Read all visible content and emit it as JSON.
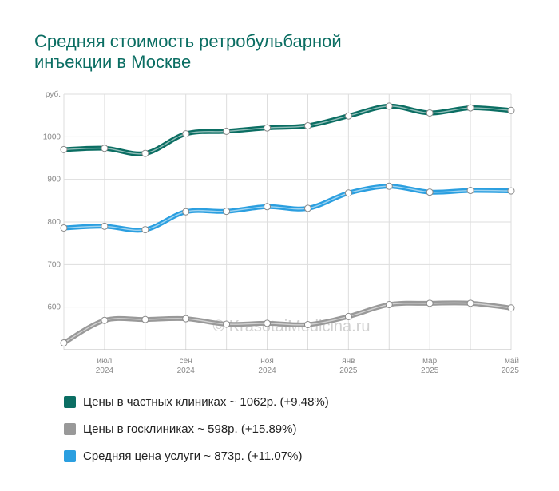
{
  "title_lines": [
    "Средняя стоимость ретробульбарной",
    "инъекции в Москве"
  ],
  "watermark": "© KrasotaiMedicina.ru",
  "colors": {
    "private": "#0b6e63",
    "public": "#999999",
    "average": "#2b9fe0",
    "grid": "#dddddd"
  },
  "chart_data": {
    "type": "line",
    "title": "Средняя стоимость ретробульбарной инъекции в Москве",
    "ylabel": "руб.",
    "ylim": [
      500,
      1100
    ],
    "yticks": [
      600,
      700,
      800,
      900,
      1000
    ],
    "x": [
      "2024-06",
      "2024-07",
      "2024-08",
      "2024-09",
      "2024-10",
      "2024-11",
      "2024-12",
      "2025-01",
      "2025-02",
      "2025-03",
      "2025-04",
      "2025-05"
    ],
    "xtick_labels": [
      {
        "month": "июл",
        "year": "2024"
      },
      {
        "month": "сен",
        "year": "2024"
      },
      {
        "month": "ноя",
        "year": "2024"
      },
      {
        "month": "янв",
        "year": "2025"
      },
      {
        "month": "мар",
        "year": "2025"
      },
      {
        "month": "май",
        "year": "2025"
      }
    ],
    "grid": true,
    "legend_position": "bottom",
    "series": [
      {
        "name": "Цены в частных клиниках",
        "color_key": "private",
        "values": [
          970,
          973,
          961,
          1007,
          1013,
          1021,
          1026,
          1049,
          1072,
          1056,
          1068,
          1062
        ]
      },
      {
        "name": "Цены в госклиниках",
        "color_key": "public",
        "values": [
          516,
          569,
          571,
          573,
          560,
          562,
          559,
          578,
          606,
          609,
          609,
          598
        ]
      },
      {
        "name": "Средняя цена услуги",
        "color_key": "average",
        "values": [
          786,
          790,
          782,
          824,
          825,
          836,
          832,
          868,
          884,
          870,
          874,
          873
        ]
      }
    ]
  },
  "legend": [
    {
      "label": "Цены в частных клиниках ~ 1062р. (+9.48%)",
      "color_key": "private"
    },
    {
      "label": "Цены в госклиниках ~ 598р. (+15.89%)",
      "color_key": "public"
    },
    {
      "label": "Средняя цена услуги ~ 873р. (+11.07%)",
      "color_key": "average"
    }
  ]
}
